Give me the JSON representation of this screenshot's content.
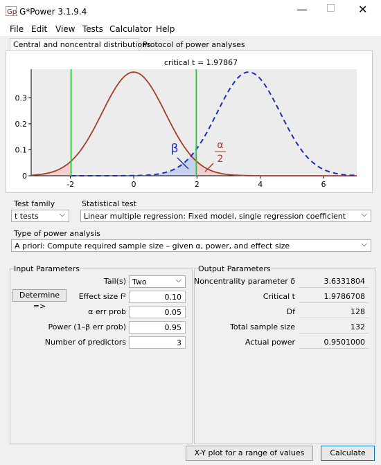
{
  "window": {
    "title": "G*Power 3.1.9.4"
  },
  "menu": [
    "File",
    "Edit",
    "View",
    "Tests",
    "Calculator",
    "Help"
  ],
  "tabs": [
    "Central and noncentral distributions",
    "Protocol of power analyses"
  ],
  "plot": {
    "title": "critical t = 1.97867",
    "xlim": [
      -3.24,
      7.05
    ],
    "ylim": [
      0,
      0.41
    ],
    "xticks": [
      -2,
      0,
      2,
      4,
      6
    ],
    "yticks": [
      0,
      0.1,
      0.2,
      0.3
    ],
    "beta_label": "β",
    "alpha_label": "α",
    "alpha_denominator": "2"
  },
  "test_family": {
    "label": "Test family",
    "value": "t tests"
  },
  "statistical_test": {
    "label": "Statistical test",
    "value": "Linear multiple regression: Fixed model, single regression coefficient"
  },
  "power_analysis": {
    "label": "Type of power analysis",
    "value": "A priori: Compute required sample size – given α, power, and effect size"
  },
  "input": {
    "title": "Input Parameters",
    "determine": "Determine =>",
    "fields": [
      {
        "label": "Tail(s)",
        "value": "Two"
      },
      {
        "label": "Effect size f²",
        "value": "0.10"
      },
      {
        "label": "α err prob",
        "value": "0.05"
      },
      {
        "label": "Power (1–β err prob)",
        "value": "0.95"
      },
      {
        "label": "Number of predictors",
        "value": "3"
      }
    ]
  },
  "output": {
    "title": "Output Parameters",
    "fields": [
      {
        "label": "Noncentrality parameter δ",
        "value": "3.6331804"
      },
      {
        "label": "Critical t",
        "value": "1.9786708"
      },
      {
        "label": "Df",
        "value": "128"
      },
      {
        "label": "Total sample size",
        "value": "132"
      },
      {
        "label": "Actual power",
        "value": "0.9501000"
      }
    ]
  },
  "buttons": [
    "X-Y plot for a range of values",
    "Calculate"
  ]
}
